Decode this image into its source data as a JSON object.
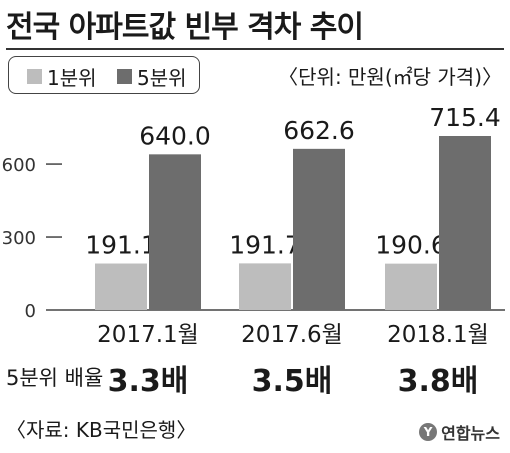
{
  "title": "전국 아파트값 빈부 격차 추이",
  "unit_note": "〈단위: 만원(㎡당 가격)〉",
  "legend": [
    {
      "label": "1분위",
      "color": "#bdbdbd"
    },
    {
      "label": "5분위",
      "color": "#6d6d6d"
    }
  ],
  "chart_data": {
    "type": "bar",
    "categories": [
      "2017.1월",
      "2017.6월",
      "2018.1월"
    ],
    "series": [
      {
        "name": "1분위",
        "values": [
          191.1,
          191.7,
          190.6
        ],
        "labels": [
          "191.1",
          "191.7",
          "190.6"
        ],
        "color": "#bdbdbd"
      },
      {
        "name": "5분위",
        "values": [
          640.0,
          662.6,
          715.4
        ],
        "labels": [
          "640.0",
          "662.6",
          "715.4"
        ],
        "color": "#6d6d6d"
      }
    ],
    "yticks": [
      0,
      300,
      600
    ],
    "ylim": [
      0,
      760
    ],
    "title": "전국 아파트값 빈부 격차 추이",
    "legend_position": "top-left"
  },
  "ratio": {
    "label": "5분위 배율",
    "values": [
      "3.3배",
      "3.5배",
      "3.8배"
    ]
  },
  "source": "〈자료: KB국민은행〉",
  "logo": {
    "mark": "Y",
    "text": "연합뉴스"
  }
}
